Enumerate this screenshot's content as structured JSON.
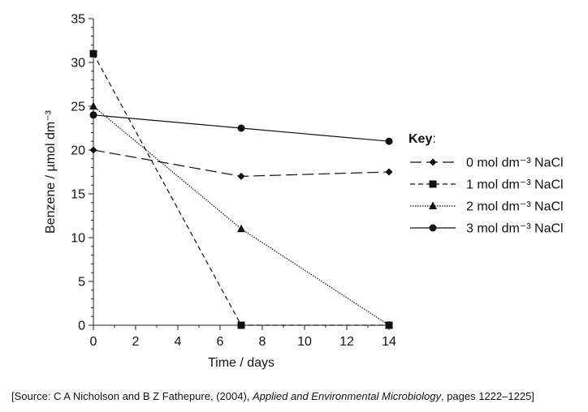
{
  "chart_data": {
    "type": "line",
    "xlabel": "Time / days",
    "ylabel": "Benzene / µmol dm⁻³",
    "xlim": [
      0,
      14
    ],
    "ylim": [
      0,
      35
    ],
    "xticks": [
      0,
      2,
      4,
      6,
      8,
      10,
      12,
      14
    ],
    "yticks": [
      0,
      5,
      10,
      15,
      20,
      25,
      30,
      35
    ],
    "x": [
      0,
      7,
      14
    ],
    "grid": false,
    "legend": {
      "title": "Key",
      "title_suffix": ":",
      "placement": "right"
    },
    "series": [
      {
        "name": "0 mol dm⁻³ NaCl",
        "marker": "diamond",
        "linestyle": "long-dash",
        "values": [
          20,
          17,
          17.5
        ]
      },
      {
        "name": "1 mol dm⁻³ NaCl",
        "marker": "square",
        "linestyle": "short-dash",
        "values": [
          31,
          0,
          0
        ]
      },
      {
        "name": "2 mol dm⁻³ NaCl",
        "marker": "triangle",
        "linestyle": "dotted",
        "values": [
          25,
          11,
          0
        ]
      },
      {
        "name": "3 mol dm⁻³ NaCl",
        "marker": "circle",
        "linestyle": "solid",
        "values": [
          24,
          22.5,
          21
        ]
      }
    ]
  },
  "source": {
    "prefix": "[Source: C A Nicholson and B Z Fathepure, (2004), ",
    "journal": "Applied and Environmental Microbiology",
    "suffix": ", pages 1222–1225]"
  }
}
